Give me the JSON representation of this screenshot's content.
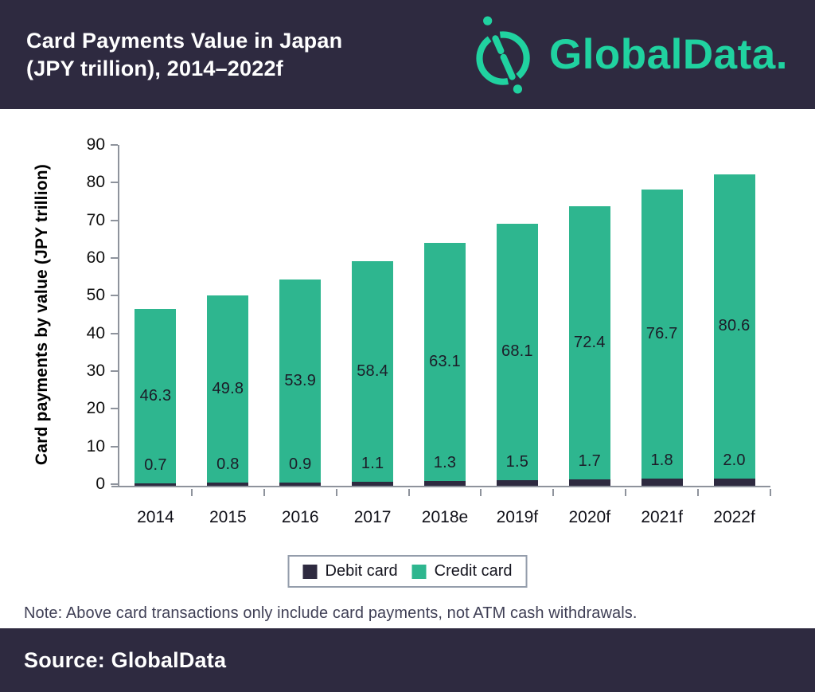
{
  "header": {
    "title_line1": "Card Payments Value in Japan",
    "title_line2": "(JPY trillion), 2014–2022f",
    "logo_text": "GlobalData.",
    "bg_color": "#2e2a40",
    "logo_color": "#20d2a0"
  },
  "chart_data": {
    "type": "bar",
    "stacked": true,
    "title": "Card Payments Value in Japan (JPY trillion), 2014-2022f",
    "categories": [
      "2014",
      "2015",
      "2016",
      "2017",
      "2018e",
      "2019f",
      "2020f",
      "2021f",
      "2022f"
    ],
    "series": [
      {
        "name": "Debit card",
        "color": "#2e2a40",
        "values": [
          "0.7",
          "0.8",
          "0.9",
          "1.1",
          "1.3",
          "1.5",
          "1.7",
          "1.8",
          "2.0"
        ]
      },
      {
        "name": "Credit card",
        "color": "#2eb68f",
        "values": [
          "46.3",
          "49.8",
          "53.9",
          "58.4",
          "63.1",
          "68.1",
          "72.4",
          "76.7",
          "80.6"
        ]
      }
    ],
    "xlabel": "",
    "ylabel": "Card payments by value (JPY trillion)",
    "ylim": [
      0,
      90
    ],
    "yticks": [
      0,
      10,
      20,
      30,
      40,
      50,
      60,
      70,
      80,
      90
    ],
    "grid": false,
    "legend_position": "bottom",
    "data_labels": true
  },
  "note": "Note: Above card transactions only include card payments, not ATM cash withdrawals.",
  "footer": {
    "source": "Source: GlobalData"
  }
}
